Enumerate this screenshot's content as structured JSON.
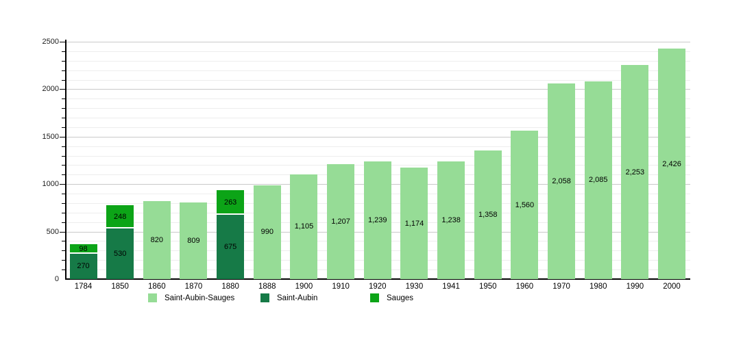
{
  "chart_data": {
    "type": "bar",
    "stacked": true,
    "title": "",
    "xlabel": "",
    "ylabel": "",
    "categories": [
      "1784",
      "1850",
      "1860",
      "1870",
      "1880",
      "1888",
      "1900",
      "1910",
      "1920",
      "1930",
      "1941",
      "1950",
      "1960",
      "1970",
      "1980",
      "1990",
      "2000"
    ],
    "series": [
      {
        "name": "Saint-Aubin-Sauges",
        "color": "#96DC96",
        "values": [
          null,
          null,
          820,
          809,
          null,
          990,
          1105,
          1207,
          1239,
          1174,
          1238,
          1358,
          1560,
          2058,
          2085,
          2253,
          2426
        ]
      },
      {
        "name": "Saint-Aubin",
        "color": "#167A47",
        "values": [
          270,
          530,
          null,
          null,
          675,
          null,
          null,
          null,
          null,
          null,
          null,
          null,
          null,
          null,
          null,
          null,
          null
        ]
      },
      {
        "name": "Sauges",
        "color": "#0CA417",
        "values": [
          98,
          248,
          null,
          null,
          263,
          null,
          null,
          null,
          null,
          null,
          null,
          null,
          null,
          null,
          null,
          null,
          null
        ]
      }
    ],
    "bar_value_labels": {
      "1784": [
        "270",
        "98"
      ],
      "1850": [
        "530",
        "248"
      ],
      "1860": [
        "820"
      ],
      "1870": [
        "809"
      ],
      "1880": [
        "675",
        "263"
      ],
      "1888": [
        "990"
      ],
      "1900": [
        "1,105"
      ],
      "1910": [
        "1,207"
      ],
      "1920": [
        "1,239"
      ],
      "1930": [
        "1,174"
      ],
      "1941": [
        "1,238"
      ],
      "1950": [
        "1,358"
      ],
      "1960": [
        "1,560"
      ],
      "1970": [
        "2,058"
      ],
      "1980": [
        "2,085"
      ],
      "1990": [
        "2,253"
      ],
      "2000": [
        "2,426"
      ]
    },
    "ylim": [
      0,
      2500
    ],
    "y_ticks": [
      0,
      500,
      1000,
      1500,
      2000,
      2500
    ],
    "y_tick_labels": [
      "0",
      "500",
      "1000",
      "1500",
      "2000",
      "2500"
    ],
    "y_minor_step": 100,
    "grid": true,
    "legend_position": "bottom",
    "colors": {
      "background": "#ffffff",
      "axis": "#000000",
      "major_grid": "#c9c9c9",
      "minor_grid": "#ededed",
      "label_text": "#000000"
    }
  }
}
